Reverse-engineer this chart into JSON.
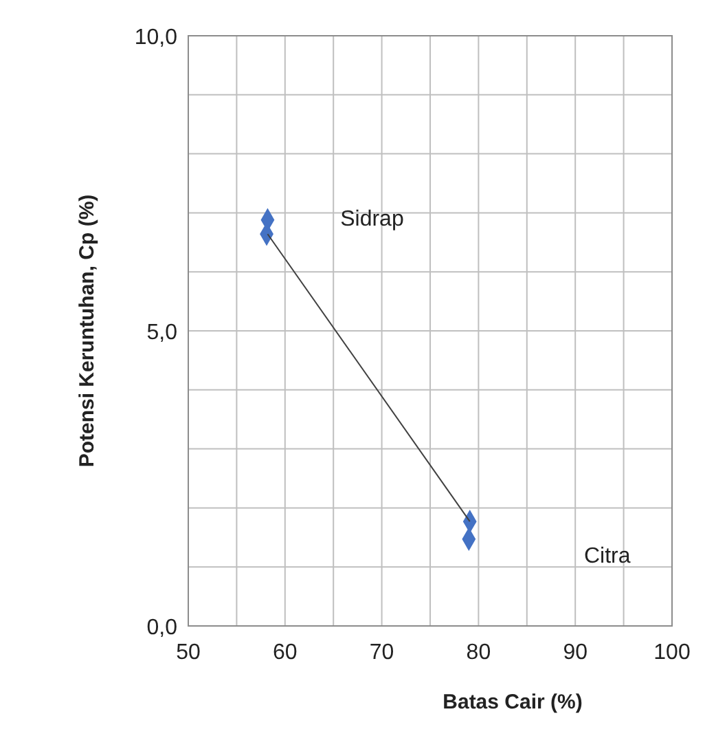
{
  "chart_data": {
    "type": "scatter",
    "xlabel": "Batas Cair (%)",
    "ylabel": "Potensi Keruntuhan, Cp (%)",
    "xlim": [
      50,
      100
    ],
    "ylim": [
      0,
      10
    ],
    "xticks": [
      50,
      {
        "value": 55,
        "label": null
      },
      60,
      {
        "value": 65,
        "label": null
      },
      70,
      {
        "value": 75,
        "label": null
      },
      80,
      {
        "value": 85,
        "label": null
      },
      90,
      {
        "value": 95,
        "label": null
      },
      100
    ],
    "yticks": [
      {
        "value": 0,
        "label": "0,0"
      },
      {
        "value": 1,
        "label": null
      },
      {
        "value": 2,
        "label": null
      },
      {
        "value": 3,
        "label": null
      },
      {
        "value": 4,
        "label": null
      },
      {
        "value": 5,
        "label": "5,0"
      },
      {
        "value": 6,
        "label": null
      },
      {
        "value": 7,
        "label": null
      },
      {
        "value": 8,
        "label": null
      },
      {
        "value": 9,
        "label": null
      },
      {
        "value": 10,
        "label": "10,0"
      }
    ],
    "grid": true,
    "marker": "diamond",
    "x": [
      58.2,
      58.1,
      79.1,
      79.0
    ],
    "series": [
      {
        "color": "#4472c4",
        "values": [
          6.88,
          6.64,
          1.77,
          1.47
        ]
      },
      {
        "type": "line",
        "color": "#404040",
        "marker": "none",
        "x": [
          58.2,
          79.1
        ],
        "values": [
          6.64,
          1.77
        ]
      }
    ],
    "annotations": [
      "Sidrap",
      "Citra"
    ]
  }
}
